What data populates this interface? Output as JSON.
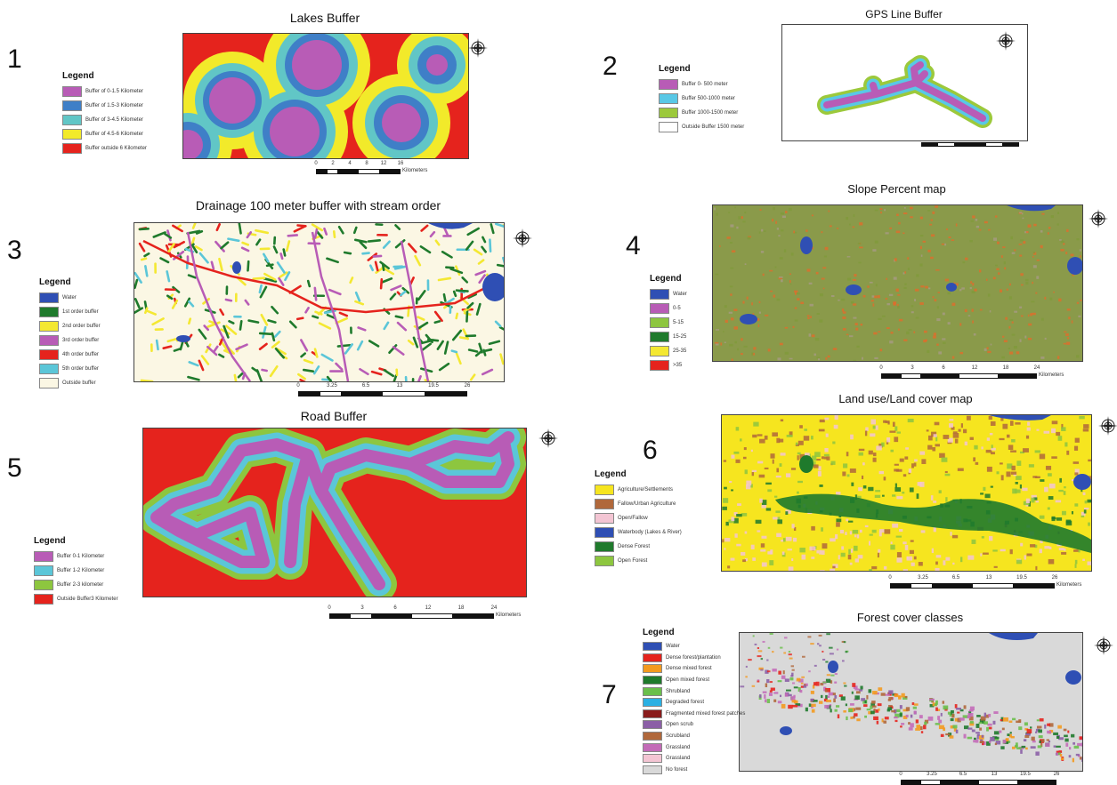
{
  "panels": {
    "p1": {
      "number": "1",
      "title": "Lakes Buffer",
      "legend_title": "Legend",
      "legend": [
        {
          "label": "Buffer of 0-1.5 Kilometer",
          "color": "#b85cb6"
        },
        {
          "label": "Buffer of 1.5-3 Kilometer",
          "color": "#3f7fc7"
        },
        {
          "label": "Buffer of 3-4.5 Kilometer",
          "color": "#61c6c6"
        },
        {
          "label": "Buffer of 4.5-6 Kilometer",
          "color": "#f2ea2a"
        },
        {
          "label": "Buffer outside 6 Kilometer",
          "color": "#e5231d"
        }
      ],
      "scale": {
        "ticks": [
          "0",
          "2",
          "4",
          "8",
          "12",
          "16"
        ],
        "unit": "Kilometers"
      }
    },
    "p2": {
      "number": "2",
      "title": "GPS Line Buffer",
      "legend_title": "Legend",
      "legend": [
        {
          "label": "Buffer 0- 500 meter",
          "color": "#b85cb6"
        },
        {
          "label": "Buffer 500-1000 meter",
          "color": "#59c8e6"
        },
        {
          "label": "Buffer 1000-1500 meter",
          "color": "#9cc93b"
        },
        {
          "label": "Outside Buffer 1500 meter",
          "color": "#ffffff"
        }
      ]
    },
    "p3": {
      "number": "3",
      "title": "Drainage 100 meter  buffer with stream order",
      "legend_title": "Legend",
      "legend": [
        {
          "label": "Water",
          "color": "#2f4fb4"
        },
        {
          "label": "1st order buffer",
          "color": "#1f7a2c"
        },
        {
          "label": "2nd order buffer",
          "color": "#f4e832"
        },
        {
          "label": "3rd order buffer",
          "color": "#b85cb6"
        },
        {
          "label": "4th  order buffer",
          "color": "#e5231d"
        },
        {
          "label": "5th order buffer",
          "color": "#5bc6d8"
        },
        {
          "label": "Outside buffer",
          "color": "#fbf7e4"
        }
      ],
      "scale": {
        "ticks": [
          "0",
          "3.25",
          "6.5",
          "13",
          "19.5",
          "26"
        ],
        "unit": ""
      }
    },
    "p4": {
      "number": "4",
      "title": "Slope Percent map",
      "legend_title": "Legend",
      "legend": [
        {
          "label": "Water",
          "color": "#2f4fb4"
        },
        {
          "label": "0-5",
          "color": "#b85cb6"
        },
        {
          "label": "5-15",
          "color": "#8dc63f"
        },
        {
          "label": "15-25",
          "color": "#1f7a2c"
        },
        {
          "label": "25-35",
          "color": "#f4e832"
        },
        {
          "label": ">35",
          "color": "#e5231d"
        }
      ],
      "scale": {
        "ticks": [
          "0",
          "3",
          "6",
          "12",
          "18",
          "24"
        ],
        "unit": "Kilometers"
      }
    },
    "p5": {
      "number": "5",
      "title": "Road Buffer",
      "legend_title": "Legend",
      "legend": [
        {
          "label": "Buffer 0-1 Kilometer",
          "color": "#b85cb6"
        },
        {
          "label": "Buffer 1-2 Kilometer",
          "color": "#5bc6d8"
        },
        {
          "label": "Buffer 2-3 kilometer",
          "color": "#8dc63f"
        },
        {
          "label": "Outside Buffer3 Kilometer",
          "color": "#e5231d"
        }
      ],
      "scale": {
        "ticks": [
          "0",
          "3",
          "6",
          "12",
          "18",
          "24"
        ],
        "unit": "Kilometers"
      }
    },
    "p6": {
      "number": "6",
      "title": "Land use/Land cover map",
      "legend_title": "Legend",
      "legend": [
        {
          "label": "Agriculture/Settlements",
          "color": "#f6e51f"
        },
        {
          "label": "Fallow/Urban Agriculture",
          "color": "#b0683b"
        },
        {
          "label": "Open/Fallow",
          "color": "#f3c5d3"
        },
        {
          "label": "Waterbody (Lakes & River)",
          "color": "#2f4fb4"
        },
        {
          "label": "Dense Forest",
          "color": "#1f7a2c"
        },
        {
          "label": "Open Forest",
          "color": "#8dc63f"
        }
      ],
      "scale": {
        "ticks": [
          "0",
          "3.25",
          "6.5",
          "13",
          "19.5",
          "26"
        ],
        "unit": "Kilometers"
      }
    },
    "p7": {
      "number": "7",
      "title": "Forest cover classes",
      "legend_title": "Legend",
      "legend": [
        {
          "label": "Water",
          "color": "#2f4fb4"
        },
        {
          "label": "Dense forest/plantation",
          "color": "#e5231d"
        },
        {
          "label": "Dense mixed forest",
          "color": "#f39a1f"
        },
        {
          "label": "Open mixed forest",
          "color": "#1f7a2c"
        },
        {
          "label": "Shrubland",
          "color": "#6abf4b"
        },
        {
          "label": "Degraded forest",
          "color": "#2bb0e3"
        },
        {
          "label": "Fragmented mixed forest patches",
          "color": "#8a1c1c"
        },
        {
          "label": "Open scrub",
          "color": "#8b5fa6"
        },
        {
          "label": "Scrubland",
          "color": "#b0683b"
        },
        {
          "label": "Grassland",
          "color": "#c36bb8"
        },
        {
          "label": "Grassland",
          "color": "#f3c5d3"
        },
        {
          "label": "No forest",
          "color": "#d9d9d9"
        }
      ],
      "scale": {
        "ticks": [
          "0",
          "3.25",
          "6.5",
          "13",
          "19.5",
          "26"
        ],
        "unit": ""
      }
    }
  }
}
